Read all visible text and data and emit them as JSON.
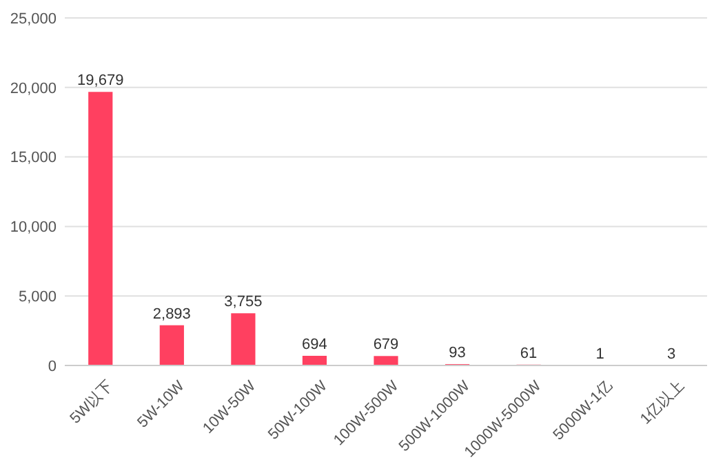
{
  "chart_data": {
    "type": "bar",
    "categories": [
      "5W以下",
      "5W-10W",
      "10W-50W",
      "50W-100W",
      "100W-500W",
      "500W-1000W",
      "1000W-5000W",
      "5000W-1亿",
      "1亿以上"
    ],
    "values": [
      19679,
      2893,
      3755,
      694,
      679,
      93,
      61,
      1,
      3
    ],
    "color": "#ff4060",
    "ylim": [
      0,
      25000
    ],
    "yticks": [
      {
        "value": 0,
        "label": "0"
      },
      {
        "value": 5000,
        "label": "5,000"
      },
      {
        "value": 10000,
        "label": "10,000"
      },
      {
        "value": 15000,
        "label": "15,000"
      },
      {
        "value": 20000,
        "label": "20,000"
      },
      {
        "value": 25000,
        "label": "25,000"
      }
    ],
    "value_labels": [
      "19,679",
      "2,893",
      "3,755",
      "694",
      "679",
      "93",
      "61",
      "1",
      "3"
    ],
    "grid": "y"
  }
}
